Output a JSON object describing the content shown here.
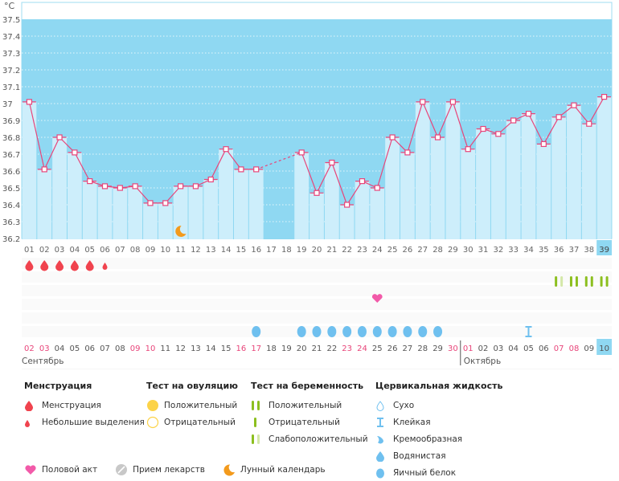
{
  "chart_data": {
    "type": "bar",
    "unit_label": "°C",
    "ylim": [
      36.2,
      37.6
    ],
    "y_ticks": [
      "37.5",
      "37.4",
      "37.3",
      "37.2",
      "37.1",
      "37",
      "36.9",
      "36.8",
      "36.7",
      "36.6",
      "36.5",
      "36.4",
      "36.3",
      "36.2"
    ],
    "y_tick_values": [
      37.5,
      37.4,
      37.3,
      37.2,
      37.1,
      37.0,
      36.9,
      36.8,
      36.7,
      36.6,
      36.5,
      36.4,
      36.3,
      36.2
    ],
    "cycle_days": [
      "01",
      "02",
      "03",
      "04",
      "05",
      "06",
      "07",
      "08",
      "09",
      "10",
      "11",
      "12",
      "13",
      "14",
      "15",
      "16",
      "17",
      "18",
      "19",
      "20",
      "21",
      "22",
      "23",
      "24",
      "25",
      "26",
      "27",
      "28",
      "29",
      "30",
      "31",
      "32",
      "33",
      "34",
      "35",
      "36",
      "37",
      "38",
      "39"
    ],
    "current_day_index": 38,
    "temperatures": [
      37.01,
      36.61,
      36.8,
      36.71,
      36.54,
      36.51,
      36.5,
      36.51,
      36.41,
      36.41,
      36.51,
      36.51,
      36.55,
      36.73,
      36.61,
      36.61,
      null,
      null,
      36.71,
      36.47,
      36.65,
      36.4,
      36.54,
      36.5,
      36.8,
      36.71,
      37.01,
      36.8,
      37.01,
      36.73,
      36.85,
      36.82,
      36.9,
      36.94,
      36.76,
      36.92,
      36.99,
      36.88,
      37.04
    ],
    "series_color": "#e8457a",
    "bar_color": "#cdeefb",
    "background_color": "#8fd8f2",
    "dates": [
      "02",
      "03",
      "04",
      "05",
      "06",
      "07",
      "08",
      "09",
      "10",
      "11",
      "12",
      "13",
      "14",
      "15",
      "16",
      "17",
      "18",
      "19",
      "20",
      "21",
      "22",
      "23",
      "24",
      "25",
      "26",
      "27",
      "28",
      "29",
      "30",
      "01",
      "02",
      "03",
      "04",
      "05",
      "06",
      "07",
      "08",
      "09",
      "10"
    ],
    "highlighted_dates": [
      0,
      1,
      7,
      8,
      14,
      15,
      21,
      22,
      28,
      29,
      35,
      36
    ],
    "months": [
      {
        "label": "Сентябрь",
        "start_index": 0
      },
      {
        "label": "Октябрь",
        "start_index": 29
      }
    ],
    "markers": {
      "menstruation": [
        0,
        1,
        2,
        3,
        4
      ],
      "spotting": [
        5
      ],
      "intercourse": [
        23
      ],
      "moon": [
        10
      ],
      "fluid_egg_white": [
        15,
        18,
        19,
        20,
        21,
        22,
        23,
        24,
        25,
        26,
        27
      ],
      "fluid_sticky": [
        33
      ],
      "pregnancy_weak": [
        35
      ],
      "pregnancy_positive": [
        36,
        37,
        38
      ]
    }
  },
  "legend": {
    "menstruation": {
      "title": "Менструация",
      "items": [
        "Менструация",
        "Небольшие выделения"
      ]
    },
    "ovulation": {
      "title": "Тест на овуляцию",
      "items": [
        "Положительный",
        "Отрицательный"
      ]
    },
    "pregnancy": {
      "title": "Тест на беременность",
      "items": [
        "Положительный",
        "Отрицательный",
        "Слабоположительный"
      ]
    },
    "fluid": {
      "title": "Цервикальная жидкость",
      "items": [
        "Сухо",
        "Клейкая",
        "Кремообразная",
        "Водянистая",
        "Яичный белок"
      ]
    },
    "other": [
      "Половой акт",
      "Прием лекарств",
      "Лунный календарь"
    ]
  },
  "colors": {
    "blood": "#f0434e",
    "heart": "#f25aa9",
    "moon": "#f39a1c",
    "fluid": "#6fc0ef",
    "test": "#8cbf1f",
    "test_light": "#d4e8a8",
    "ovul": "#fcd348",
    "pill": "#c8c8c8",
    "pink_date": "#e8457a"
  }
}
